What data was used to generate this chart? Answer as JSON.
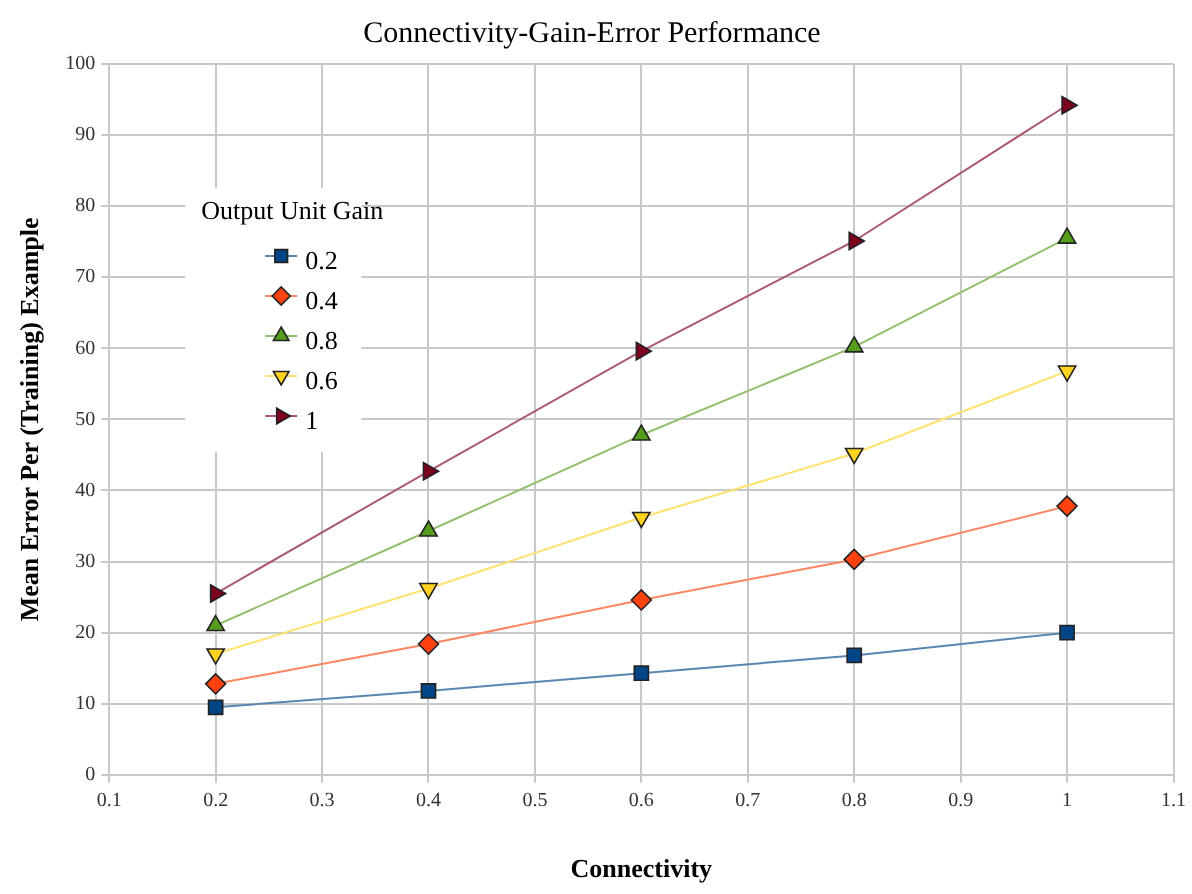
{
  "chart_data": {
    "type": "line",
    "title": "Connectivity-Gain-Error Performance",
    "xlabel": "Connectivity",
    "ylabel": "Mean Error Per (Training) Example",
    "legend_title": "Output Unit Gain",
    "x": [
      0.2,
      0.4,
      0.6,
      0.8,
      1
    ],
    "series": [
      {
        "name": "0.2",
        "color": "#004586",
        "marker": "square",
        "values": [
          9.5,
          11.8,
          14.3,
          16.8,
          20
        ]
      },
      {
        "name": "0.4",
        "color": "#ff420e",
        "marker": "diamond",
        "values": [
          12.8,
          18.4,
          24.6,
          30.3,
          37.8
        ]
      },
      {
        "name": "0.8",
        "color": "#579d1c",
        "marker": "triangle",
        "values": [
          21,
          34.3,
          47.8,
          60.2,
          75.5
        ]
      },
      {
        "name": "0.6",
        "color": "#ffd320",
        "marker": "triangle-down",
        "values": [
          17,
          26.2,
          36.2,
          45.2,
          56.8
        ]
      },
      {
        "name": "1",
        "color": "#7e0021",
        "marker": "triangle-right",
        "values": [
          25.5,
          42.7,
          59.6,
          75.1,
          94.2
        ]
      }
    ],
    "xlim": [
      0.1,
      1.1
    ],
    "xticks": [
      0.1,
      0.2,
      0.3,
      0.4,
      0.5,
      0.6,
      0.7,
      0.8,
      0.9,
      1,
      1.1
    ],
    "ylim": [
      0,
      100
    ],
    "yticks": [
      0,
      10,
      20,
      30,
      40,
      50,
      60,
      70,
      80,
      90,
      100
    ],
    "grid": true,
    "legend": "left",
    "line_style": "solid"
  }
}
